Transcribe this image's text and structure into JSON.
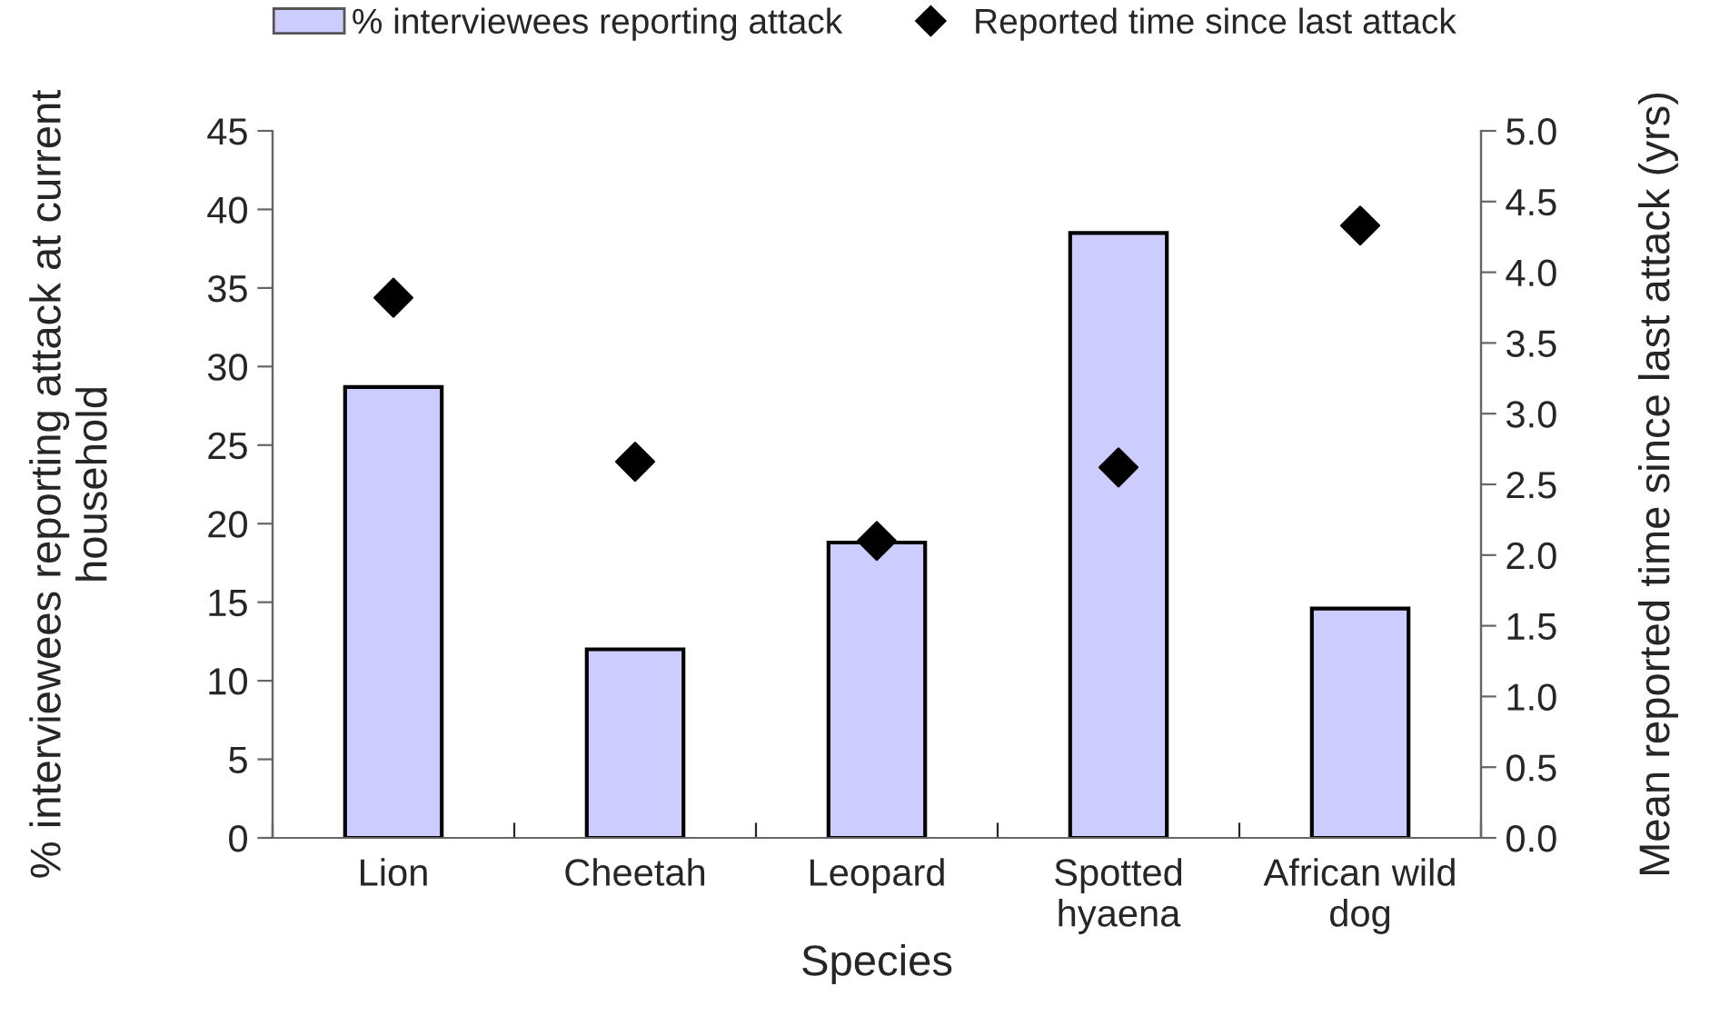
{
  "chart_data": {
    "type": "bar",
    "xlabel": "Species",
    "ylabel": "% interviewees reporting attack at current household",
    "y2label": "Mean reported time since last attack (yrs)",
    "categories": [
      "Lion",
      "Cheetah",
      "Leopard",
      "Spotted hyaena",
      "African wild dog"
    ],
    "series": [
      {
        "name": "% interviewees reporting attack",
        "color": "#ccccff",
        "values": [
          28.7,
          12.0,
          18.8,
          38.5,
          14.6
        ]
      },
      {
        "name": "Reported time since last attack",
        "type": "scatter",
        "axis": "y2",
        "marker": "diamond",
        "color": "#000000",
        "values": [
          3.82,
          2.66,
          2.1,
          2.62,
          4.33
        ]
      }
    ],
    "ylim": [
      0,
      45
    ],
    "yticks": [
      0,
      5,
      10,
      15,
      20,
      25,
      30,
      35,
      40,
      45
    ],
    "y2lim": [
      0,
      5
    ],
    "y2ticks": [
      {
        "value": 0,
        "label": "0.0"
      },
      {
        "value": 0.5,
        "label": "0.5"
      },
      {
        "value": 1,
        "label": "1.0"
      },
      {
        "value": 1.5,
        "label": "1.5"
      },
      {
        "value": 2,
        "label": "2.0"
      },
      {
        "value": 2.5,
        "label": "2.5"
      },
      {
        "value": 3,
        "label": "3.0"
      },
      {
        "value": 3.5,
        "label": "3.5"
      },
      {
        "value": 4,
        "label": "4.0"
      },
      {
        "value": 4.5,
        "label": "4.5"
      },
      {
        "value": 5,
        "label": "5.0"
      }
    ],
    "grid": false,
    "legend": "top"
  }
}
